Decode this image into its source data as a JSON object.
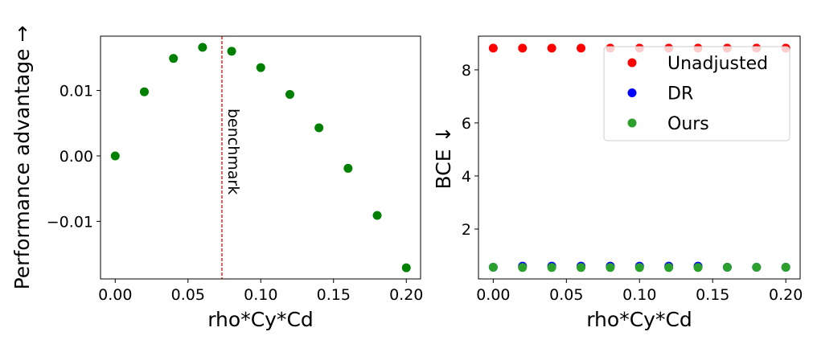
{
  "chart_data": [
    {
      "type": "scatter",
      "title": "",
      "xlabel": "rho*Cy*Cd",
      "ylabel": "Performance advantage →",
      "xlim": [
        -0.0101,
        0.2098
      ],
      "ylim": [
        -0.0188,
        0.0183
      ],
      "xticks": [
        0.0,
        0.05,
        0.1,
        0.15,
        0.2
      ],
      "xtick_labels": [
        "0.00",
        "0.05",
        "0.10",
        "0.15",
        "0.20"
      ],
      "yticks": [
        -0.01,
        0.0,
        0.01
      ],
      "ytick_labels": [
        "−0.01",
        "0.00",
        "0.01"
      ],
      "grid": false,
      "series": [
        {
          "name": "advantage",
          "color": "#008000",
          "x": [
            0.0,
            0.02,
            0.04,
            0.06,
            0.08,
            0.1,
            0.12,
            0.14,
            0.16,
            0.18,
            0.2
          ],
          "y": [
            0.0,
            0.0098,
            0.0149,
            0.0166,
            0.016,
            0.0135,
            0.0094,
            0.0043,
            -0.0019,
            -0.0091,
            -0.0171
          ]
        }
      ],
      "annotations": [
        {
          "type": "vline",
          "x": 0.0733,
          "color": "#ff0000",
          "style": "dashed",
          "label": "benchmark"
        }
      ]
    },
    {
      "type": "scatter",
      "title": "",
      "xlabel": "rho*Cy*Cd",
      "ylabel": "BCE ↓",
      "xlim": [
        -0.0101,
        0.2098
      ],
      "ylim": [
        0.12,
        9.27
      ],
      "xticks": [
        0.0,
        0.05,
        0.1,
        0.15,
        0.2
      ],
      "xtick_labels": [
        "0.00",
        "0.05",
        "0.10",
        "0.15",
        "0.20"
      ],
      "yticks": [
        2,
        4,
        6,
        8
      ],
      "ytick_labels": [
        "2",
        "4",
        "6",
        "8"
      ],
      "grid": false,
      "legend_position": "top-right",
      "series": [
        {
          "name": "Unadjusted",
          "color": "#ff0000",
          "x": [
            0.0,
            0.02,
            0.04,
            0.06,
            0.08,
            0.1,
            0.12,
            0.14,
            0.16,
            0.18,
            0.2
          ],
          "y": [
            8.82,
            8.82,
            8.82,
            8.82,
            8.82,
            8.82,
            8.82,
            8.82,
            8.82,
            8.82,
            8.82
          ]
        },
        {
          "name": "DR",
          "color": "#0000ff",
          "x": [
            0.0,
            0.02,
            0.04,
            0.06,
            0.08,
            0.1,
            0.12,
            0.14,
            0.16,
            0.18,
            0.2
          ],
          "y": [
            0.56,
            0.6,
            0.6,
            0.6,
            0.6,
            0.6,
            0.6,
            0.6,
            0.56,
            0.56,
            0.56
          ]
        },
        {
          "name": "Ours",
          "color": "#2ca02c",
          "x": [
            0.0,
            0.02,
            0.04,
            0.06,
            0.08,
            0.1,
            0.12,
            0.14,
            0.16,
            0.18,
            0.2
          ],
          "y": [
            0.56,
            0.55,
            0.55,
            0.55,
            0.55,
            0.55,
            0.55,
            0.55,
            0.56,
            0.56,
            0.56
          ]
        }
      ]
    }
  ]
}
